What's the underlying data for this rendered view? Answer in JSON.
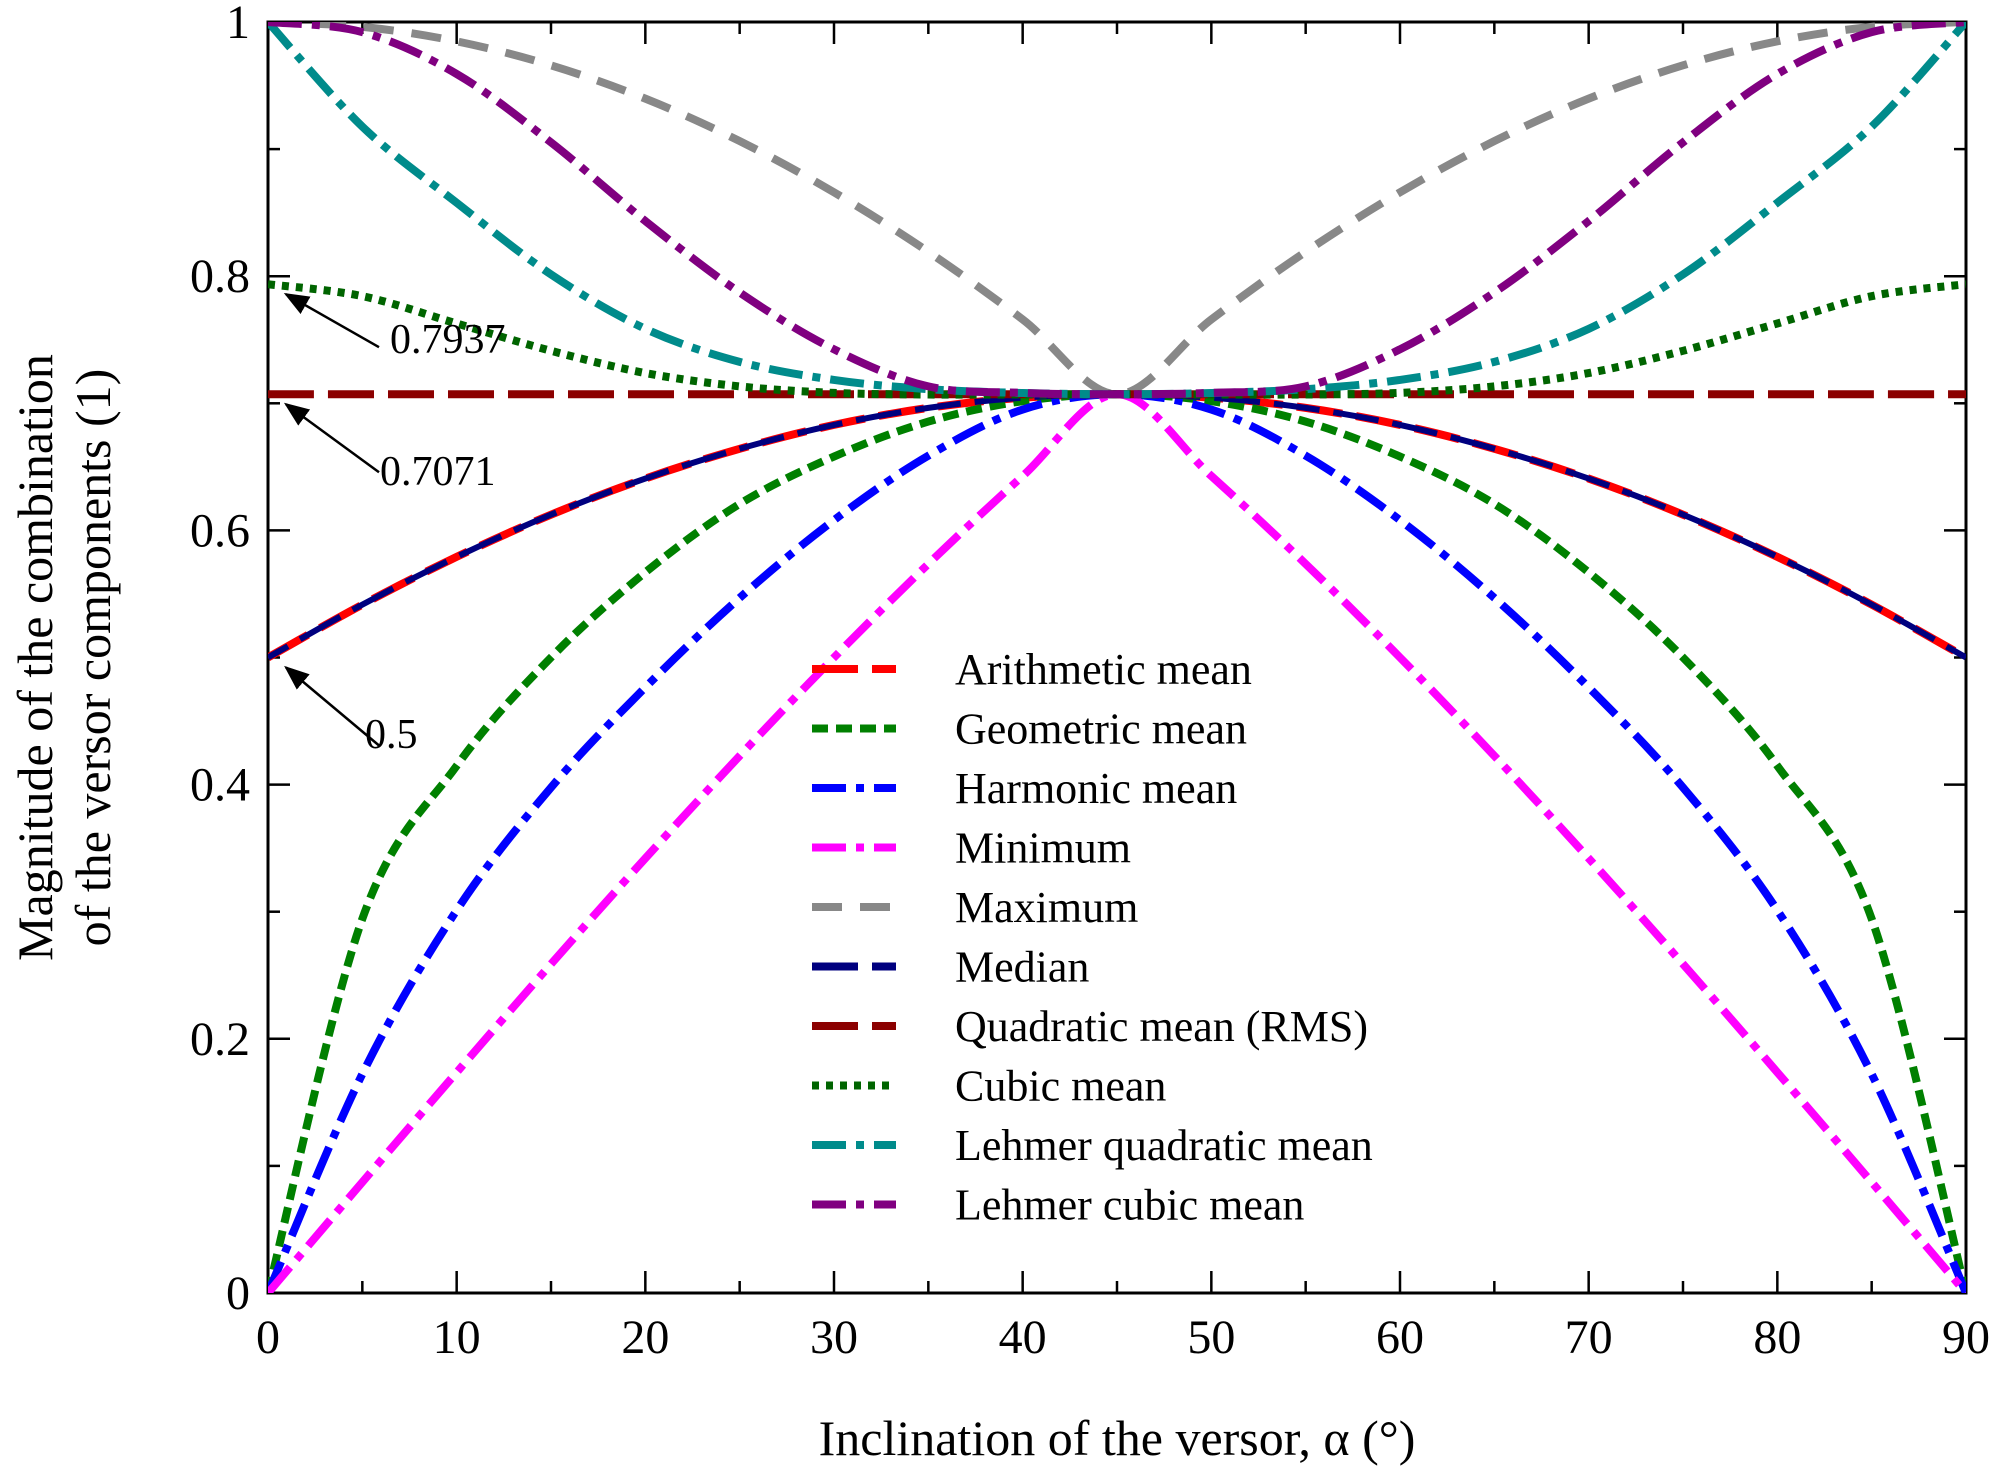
{
  "chart_data": {
    "type": "line",
    "title": "",
    "xlabel": "Inclination of the versor, α (°)",
    "ylabel_line1": "Magnitude of the combination",
    "ylabel_line2": "of the versor components (1)",
    "xlim": [
      0,
      90
    ],
    "ylim": [
      0,
      1
    ],
    "x_ticks": [
      "0",
      "10",
      "20",
      "30",
      "40",
      "50",
      "60",
      "70",
      "80",
      "90"
    ],
    "y_ticks": [
      "0",
      "0.2",
      "0.4",
      "0.6",
      "0.8",
      "1"
    ],
    "grid": false,
    "legend_position": "bottom-center",
    "x": [
      0,
      5,
      10,
      15,
      20,
      25,
      30,
      35,
      40,
      45,
      50,
      55,
      60,
      65,
      70,
      75,
      80,
      85,
      90
    ],
    "series": [
      {
        "name": "Arithmetic mean",
        "color": "#ff0000",
        "dash": "long-dash",
        "values": [
          0.5,
          0.5416,
          0.5792,
          0.6124,
          0.6408,
          0.6642,
          0.683,
          0.6964,
          0.7044,
          0.7071,
          0.7044,
          0.6964,
          0.683,
          0.6642,
          0.6408,
          0.6124,
          0.5792,
          0.5416,
          0.5
        ]
      },
      {
        "name": "Geometric mean",
        "color": "#008000",
        "dash": "short-dash",
        "values": [
          0,
          0.2944,
          0.4148,
          0.5,
          0.567,
          0.6208,
          0.6581,
          0.6856,
          0.7017,
          0.7071,
          0.7017,
          0.6856,
          0.6581,
          0.6208,
          0.567,
          0.5,
          0.4148,
          0.2944,
          0
        ]
      },
      {
        "name": "Harmonic mean",
        "color": "#0000ff",
        "dash": "dash-dot",
        "values": [
          0,
          0.1723,
          0.3011,
          0.3977,
          0.4765,
          0.5469,
          0.6081,
          0.6588,
          0.6951,
          0.7071,
          0.6951,
          0.6588,
          0.6081,
          0.5469,
          0.4765,
          0.3977,
          0.3011,
          0.1723,
          0
        ]
      },
      {
        "name": "Minimum",
        "color": "#ff00ff",
        "dash": "dash-dot",
        "values": [
          0,
          0.0872,
          0.1736,
          0.2588,
          0.342,
          0.4226,
          0.5,
          0.5736,
          0.6428,
          0.7071,
          0.6428,
          0.5736,
          0.5,
          0.4226,
          0.342,
          0.2588,
          0.1736,
          0.0872,
          0
        ]
      },
      {
        "name": "Maximum",
        "color": "#888888",
        "dash": "medium-dash",
        "values": [
          1,
          0.9962,
          0.9848,
          0.9659,
          0.9397,
          0.9063,
          0.866,
          0.8192,
          0.766,
          0.7071,
          0.766,
          0.8192,
          0.866,
          0.9063,
          0.9397,
          0.9659,
          0.9848,
          0.9962,
          1
        ]
      },
      {
        "name": "Median",
        "color": "#00007f",
        "dash": "long-dash",
        "values": [
          0.5,
          0.5416,
          0.5792,
          0.6124,
          0.6408,
          0.6642,
          0.683,
          0.6964,
          0.7044,
          0.7071,
          0.7044,
          0.6964,
          0.683,
          0.6642,
          0.6408,
          0.6124,
          0.5792,
          0.5416,
          0.5
        ]
      },
      {
        "name": "Quadratic mean (RMS)",
        "color": "#8b0000",
        "dash": "long-dash",
        "values": [
          0.7071,
          0.7071,
          0.7071,
          0.7071,
          0.7071,
          0.7071,
          0.7071,
          0.7071,
          0.7071,
          0.7071,
          0.7071,
          0.7071,
          0.7071,
          0.7071,
          0.7071,
          0.7071,
          0.7071,
          0.7071,
          0.7071
        ]
      },
      {
        "name": "Cubic mean",
        "color": "#006400",
        "dash": "dotted",
        "values": [
          0.7937,
          0.7843,
          0.7628,
          0.7413,
          0.7238,
          0.7133,
          0.7082,
          0.7069,
          0.7069,
          0.7071,
          0.7069,
          0.7069,
          0.7082,
          0.7133,
          0.7238,
          0.7413,
          0.7628,
          0.7843,
          0.7937
        ]
      },
      {
        "name": "Lehmer quadratic mean",
        "color": "#008b8b",
        "dash": "dash-dot",
        "values": [
          1,
          0.9177,
          0.8578,
          0.8014,
          0.7586,
          0.7326,
          0.7184,
          0.7111,
          0.7081,
          0.7071,
          0.7081,
          0.7111,
          0.7184,
          0.7326,
          0.7586,
          0.8014,
          0.8578,
          0.9177,
          1
        ]
      },
      {
        "name": "Lehmer cubic mean",
        "color": "#800080",
        "dash": "dash-dot",
        "values": [
          1,
          0.992,
          0.9591,
          0.9053,
          0.8434,
          0.7872,
          0.7425,
          0.7133,
          0.7082,
          0.7071,
          0.7082,
          0.7133,
          0.7425,
          0.7872,
          0.8434,
          0.9053,
          0.9591,
          0.992,
          1
        ]
      }
    ],
    "annotations": [
      {
        "text": "0.7937",
        "x": 0,
        "y": 0.7937
      },
      {
        "text": "0.7071",
        "x": 0,
        "y": 0.7071
      },
      {
        "text": "0.5",
        "x": 0,
        "y": 0.5
      }
    ]
  }
}
